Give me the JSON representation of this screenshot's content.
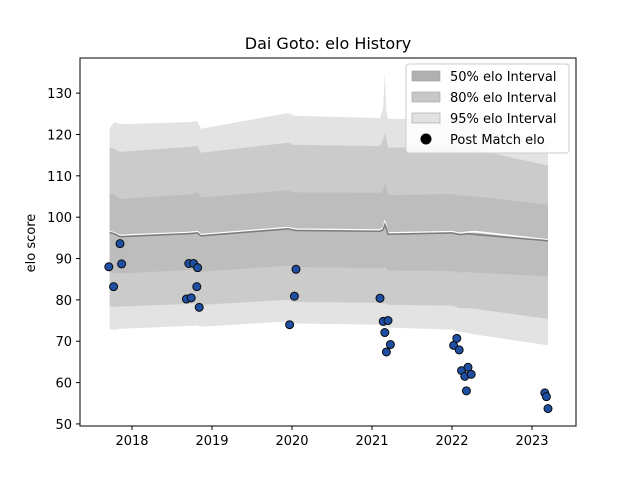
{
  "chart_data": {
    "type": "scatter",
    "title": "Dai Goto: elo History",
    "xlabel": "",
    "ylabel": "elo score",
    "xlim": [
      2017.35,
      2023.55
    ],
    "ylim": [
      49.5,
      138.5
    ],
    "x_ticks": [
      2018,
      2019,
      2020,
      2021,
      2022,
      2023
    ],
    "x_tick_labels": [
      "2018",
      "2019",
      "2020",
      "2021",
      "2022",
      "2023"
    ],
    "y_ticks": [
      50,
      60,
      70,
      80,
      90,
      100,
      110,
      120,
      130
    ],
    "y_tick_labels": [
      "50",
      "60",
      "70",
      "80",
      "90",
      "100",
      "110",
      "120",
      "130"
    ],
    "grid": false,
    "legend_position": "upper right",
    "legend": [
      {
        "label": "50% elo Interval",
        "color": "#b0b0b0",
        "kind": "patch"
      },
      {
        "label": "80% elo Interval",
        "color": "#c8c8c8",
        "kind": "patch"
      },
      {
        "label": "95% elo Interval",
        "color": "#e2e2e2",
        "kind": "patch"
      },
      {
        "label": "Post Match elo",
        "color": "#000000",
        "kind": "marker"
      }
    ],
    "band_colors": {
      "b95": "#e3e3e3",
      "b80": "#cbcbcb",
      "b50": "#bdbdbd"
    },
    "mean_line_color": "#7d7d7d",
    "upper_line_color": "#ffffff",
    "marker_color": "#1f4fa3",
    "marker_edge": "#0a0a0a",
    "bands": {
      "x": [
        2017.72,
        2017.78,
        2017.85,
        2018.7,
        2018.82,
        2018.86,
        2019.95,
        2020.02,
        2020.05,
        2021.1,
        2021.14,
        2021.16,
        2021.18,
        2021.2,
        2022.0,
        2022.1,
        2022.2,
        2022.3,
        2023.2
      ],
      "mean": [
        96.3,
        96.0,
        95.3,
        96.0,
        96.2,
        95.5,
        97.2,
        96.9,
        96.8,
        96.6,
        97.0,
        98.2,
        97.3,
        95.9,
        96.2,
        95.8,
        96.0,
        95.8,
        94.3
      ],
      "upper": [
        96.5,
        96.2,
        95.6,
        96.3,
        96.5,
        95.8,
        97.5,
        97.2,
        97.1,
        96.9,
        97.4,
        98.8,
        97.6,
        96.2,
        96.5,
        96.1,
        96.4,
        96.5,
        94.5
      ],
      "lo50": [
        86.8,
        86.5,
        86.4,
        87.2,
        87.4,
        86.8,
        88.3,
        88.0,
        87.9,
        87.7,
        87.6,
        88.1,
        87.7,
        87.1,
        87.0,
        86.6,
        86.7,
        86.6,
        85.7
      ],
      "hi50": [
        105.7,
        105.5,
        104.4,
        105.5,
        106.0,
        104.8,
        106.5,
        106.0,
        106.0,
        105.9,
        106.6,
        108.2,
        107.0,
        105.3,
        105.6,
        105.2,
        105.2,
        105.0,
        103.0
      ],
      "lo80": [
        78.5,
        78.3,
        78.4,
        79.0,
        79.2,
        78.8,
        80.0,
        79.5,
        79.5,
        79.3,
        79.0,
        79.2,
        79.1,
        78.8,
        78.6,
        78.0,
        78.0,
        77.8,
        75.4
      ],
      "hi80": [
        116.9,
        116.5,
        115.8,
        117.0,
        117.2,
        115.6,
        118.0,
        117.5,
        117.5,
        117.2,
        118.8,
        120.3,
        119.0,
        116.8,
        117.0,
        116.5,
        116.4,
        116.3,
        112.5
      ],
      "lo95": [
        73.0,
        72.7,
        73.0,
        73.7,
        73.8,
        73.5,
        74.8,
        74.3,
        74.3,
        74.0,
        73.5,
        73.4,
        73.4,
        73.3,
        72.8,
        72.2,
        72.0,
        71.6,
        69.0
      ],
      "hi95": [
        121.5,
        123.0,
        122.5,
        123.0,
        123.2,
        121.4,
        125.2,
        124.6,
        124.5,
        124.0,
        126.5,
        135.0,
        125.5,
        123.8,
        123.6,
        123.0,
        122.8,
        122.5,
        118.2
      ]
    },
    "points": [
      {
        "x": 2017.71,
        "y": 88.0
      },
      {
        "x": 2017.77,
        "y": 83.2
      },
      {
        "x": 2017.85,
        "y": 93.6
      },
      {
        "x": 2017.87,
        "y": 88.7
      },
      {
        "x": 2018.68,
        "y": 80.2
      },
      {
        "x": 2018.71,
        "y": 88.8
      },
      {
        "x": 2018.74,
        "y": 80.5
      },
      {
        "x": 2018.77,
        "y": 88.8
      },
      {
        "x": 2018.81,
        "y": 83.2
      },
      {
        "x": 2018.82,
        "y": 87.8
      },
      {
        "x": 2018.84,
        "y": 78.2
      },
      {
        "x": 2019.97,
        "y": 74.0
      },
      {
        "x": 2020.03,
        "y": 80.9
      },
      {
        "x": 2020.05,
        "y": 87.4
      },
      {
        "x": 2021.1,
        "y": 80.4
      },
      {
        "x": 2021.14,
        "y": 74.8
      },
      {
        "x": 2021.16,
        "y": 72.1
      },
      {
        "x": 2021.18,
        "y": 67.4
      },
      {
        "x": 2021.2,
        "y": 75.0
      },
      {
        "x": 2021.23,
        "y": 69.2
      },
      {
        "x": 2022.02,
        "y": 69.0
      },
      {
        "x": 2022.06,
        "y": 70.7
      },
      {
        "x": 2022.09,
        "y": 67.9
      },
      {
        "x": 2022.12,
        "y": 62.9
      },
      {
        "x": 2022.16,
        "y": 61.5
      },
      {
        "x": 2022.18,
        "y": 58.0
      },
      {
        "x": 2022.2,
        "y": 63.7
      },
      {
        "x": 2022.24,
        "y": 62.0
      },
      {
        "x": 2023.16,
        "y": 57.5
      },
      {
        "x": 2023.18,
        "y": 56.6
      },
      {
        "x": 2023.2,
        "y": 53.7
      }
    ]
  }
}
